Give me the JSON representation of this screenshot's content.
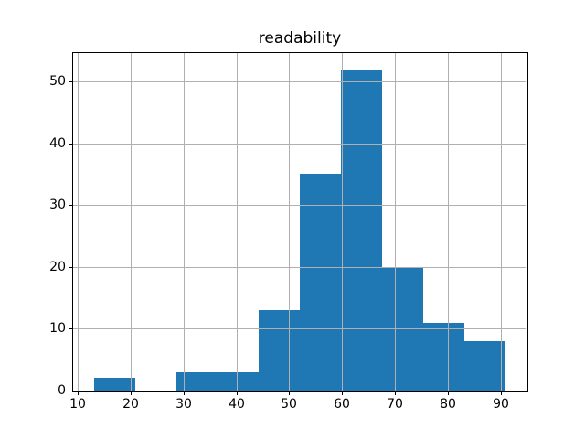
{
  "chart_data": {
    "type": "bar",
    "subtype": "histogram",
    "title": "readability",
    "xlabel": "",
    "ylabel": "",
    "bin_edges": [
      13.0,
      20.8,
      28.6,
      36.4,
      44.2,
      52.0,
      59.8,
      67.6,
      75.4,
      83.2,
      91.0
    ],
    "counts": [
      2,
      0,
      3,
      3,
      13,
      35,
      52,
      20,
      11,
      8
    ],
    "x_ticks": [
      10,
      20,
      30,
      40,
      50,
      60,
      70,
      80,
      90
    ],
    "y_ticks": [
      0,
      10,
      20,
      30,
      40,
      50
    ],
    "xlim": [
      9.1,
      94.9
    ],
    "ylim": [
      0,
      54.6
    ],
    "grid": true,
    "grid_above_bars": true,
    "legend": false,
    "colors": {
      "bar": "#1f77b4",
      "grid": "#b0b0b0",
      "spine": "#000000",
      "text": "#000000",
      "background": "#ffffff"
    }
  }
}
